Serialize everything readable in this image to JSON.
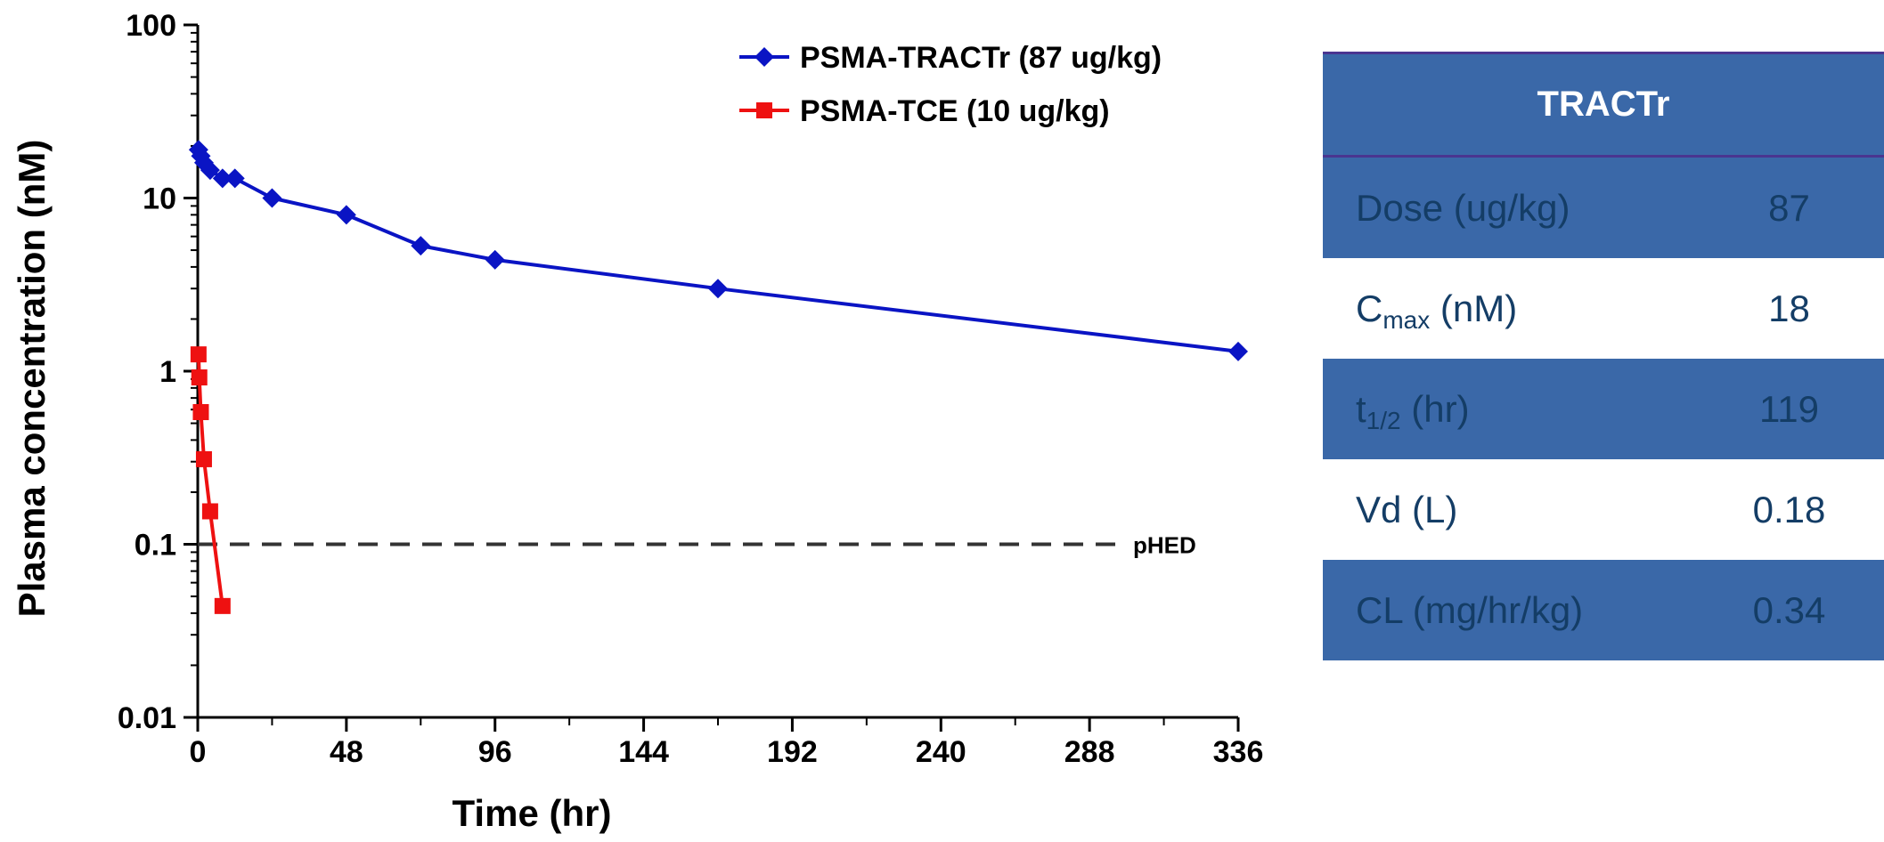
{
  "chart_data": {
    "type": "line",
    "title": "",
    "xlabel": "Time (hr)",
    "ylabel": "Plasma concentration (nM)",
    "xlim": [
      0,
      336
    ],
    "ylim": [
      0.01,
      100
    ],
    "yscale": "log",
    "xticks": [
      0,
      48,
      96,
      144,
      192,
      240,
      288,
      336
    ],
    "yticks": [
      0.01,
      0.1,
      1,
      10,
      100
    ],
    "ytick_labels": [
      "0.01",
      "0.1",
      "1",
      "10",
      "100"
    ],
    "legend_position": "top-right",
    "series": [
      {
        "name": "PSMA-TRACTr",
        "legend_label": "PSMA-TRACTr (87 ug/kg)",
        "color": "#0a14c4",
        "marker": "diamond",
        "x": [
          0.25,
          1,
          2,
          4,
          8,
          12,
          24,
          48,
          72,
          96,
          168,
          336
        ],
        "y": [
          19,
          17.5,
          16,
          14.5,
          13,
          13,
          10,
          8,
          5.3,
          4.4,
          3,
          1.3
        ]
      },
      {
        "name": "PSMA-TCE",
        "legend_label": "PSMA-TCE  (10 ug/kg)",
        "color": "#ee1111",
        "marker": "square",
        "x": [
          0.25,
          0.5,
          1,
          2,
          4,
          8
        ],
        "y": [
          1.25,
          0.92,
          0.58,
          0.31,
          0.155,
          0.044
        ]
      }
    ],
    "reference_lines": [
      {
        "label": "pHED",
        "y": 0.1,
        "style": "dashed",
        "color": "#333333"
      }
    ]
  },
  "pk_table": {
    "header": "TRACTr",
    "rows": [
      {
        "label": "Dose (ug/kg)",
        "value": "87"
      },
      {
        "label_main": "C",
        "label_sub": "max",
        "label_rest": " (nM)",
        "value": "18"
      },
      {
        "label_main": "t",
        "label_sub": "1/2",
        "label_rest": " (hr)",
        "value": "119"
      },
      {
        "label": "Vd (L)",
        "value": "0.18"
      },
      {
        "label": "CL (mg/hr/kg)",
        "value": "0.34"
      }
    ]
  }
}
